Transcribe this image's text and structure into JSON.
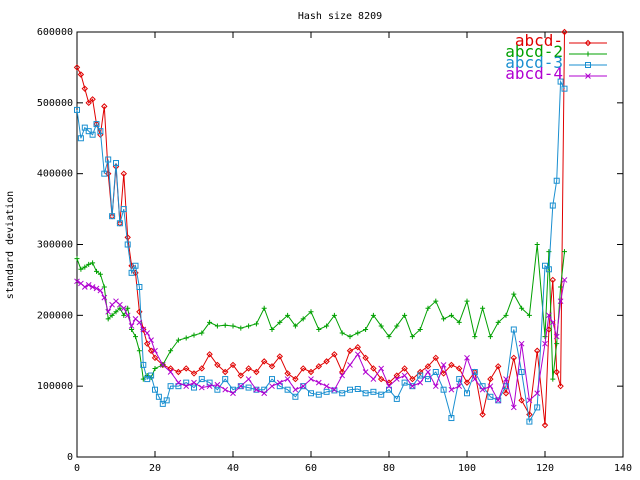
{
  "chart_data": {
    "type": "line",
    "title": "Hash size 8209",
    "xlabel": "",
    "ylabel": "standard deviation",
    "xlim": [
      0,
      140
    ],
    "ylim": [
      0,
      600000
    ],
    "xticks": [
      0,
      20,
      40,
      60,
      80,
      100,
      120,
      140
    ],
    "yticks": [
      0,
      100000,
      200000,
      300000,
      400000,
      500000,
      600000
    ],
    "ytick_labels": [
      "0",
      "100000",
      "200000",
      "300000",
      "400000",
      "500000",
      "600000"
    ],
    "grid": false,
    "legend_position": "top-right",
    "series": [
      {
        "name": "abcd-",
        "color": "#e00000",
        "marker": "diamond",
        "x": [
          0,
          1,
          2,
          3,
          4,
          5,
          6,
          7,
          8,
          9,
          10,
          11,
          12,
          13,
          14,
          15,
          16,
          17,
          18,
          19,
          20,
          22,
          24,
          26,
          28,
          30,
          32,
          34,
          36,
          38,
          40,
          42,
          44,
          46,
          48,
          50,
          52,
          54,
          56,
          58,
          60,
          62,
          64,
          66,
          68,
          70,
          72,
          74,
          76,
          78,
          80,
          82,
          84,
          86,
          88,
          90,
          92,
          94,
          96,
          98,
          100,
          102,
          104,
          106,
          108,
          110,
          112,
          114,
          116,
          118,
          120,
          121,
          122,
          123,
          124,
          125
        ],
        "values": [
          550000,
          540000,
          520000,
          500000,
          505000,
          470000,
          455000,
          495000,
          400000,
          340000,
          410000,
          330000,
          400000,
          310000,
          270000,
          260000,
          205000,
          180000,
          160000,
          150000,
          140000,
          130000,
          125000,
          120000,
          125000,
          118000,
          125000,
          145000,
          130000,
          120000,
          130000,
          115000,
          125000,
          120000,
          135000,
          128000,
          142000,
          118000,
          110000,
          125000,
          120000,
          128000,
          135000,
          145000,
          120000,
          150000,
          155000,
          140000,
          125000,
          110000,
          105000,
          115000,
          125000,
          110000,
          120000,
          128000,
          140000,
          118000,
          130000,
          125000,
          105000,
          120000,
          60000,
          110000,
          128000,
          90000,
          140000,
          80000,
          60000,
          150000,
          45000,
          180000,
          250000,
          120000,
          100000,
          600000
        ]
      },
      {
        "name": "abcd-2",
        "color": "#00a000",
        "marker": "plus",
        "x": [
          0,
          1,
          2,
          3,
          4,
          5,
          6,
          7,
          8,
          9,
          10,
          11,
          12,
          13,
          14,
          15,
          16,
          17,
          18,
          19,
          20,
          22,
          24,
          26,
          28,
          30,
          32,
          34,
          36,
          38,
          40,
          42,
          44,
          46,
          48,
          50,
          52,
          54,
          56,
          58,
          60,
          62,
          64,
          66,
          68,
          70,
          72,
          74,
          76,
          78,
          80,
          82,
          84,
          86,
          88,
          90,
          92,
          94,
          96,
          98,
          100,
          102,
          104,
          106,
          108,
          110,
          112,
          114,
          116,
          118,
          120,
          121,
          122,
          123,
          124,
          125
        ],
        "values": [
          280000,
          265000,
          268000,
          272000,
          274000,
          262000,
          258000,
          240000,
          195000,
          200000,
          205000,
          210000,
          200000,
          210000,
          180000,
          170000,
          150000,
          110000,
          115000,
          112000,
          125000,
          130000,
          150000,
          165000,
          168000,
          172000,
          175000,
          190000,
          185000,
          186000,
          185000,
          182000,
          185000,
          188000,
          210000,
          180000,
          190000,
          200000,
          185000,
          195000,
          205000,
          180000,
          185000,
          200000,
          175000,
          170000,
          175000,
          180000,
          200000,
          185000,
          170000,
          185000,
          200000,
          170000,
          180000,
          210000,
          220000,
          195000,
          200000,
          190000,
          220000,
          170000,
          210000,
          170000,
          190000,
          200000,
          230000,
          210000,
          200000,
          300000,
          170000,
          290000,
          110000,
          160000,
          240000,
          290000
        ]
      },
      {
        "name": "abcd-3",
        "color": "#1a8fd0",
        "marker": "square",
        "x": [
          0,
          1,
          2,
          3,
          4,
          5,
          6,
          7,
          8,
          9,
          10,
          11,
          12,
          13,
          14,
          15,
          16,
          17,
          18,
          19,
          20,
          21,
          22,
          23,
          24,
          26,
          28,
          30,
          32,
          34,
          36,
          38,
          40,
          42,
          44,
          46,
          48,
          50,
          52,
          54,
          56,
          58,
          60,
          62,
          64,
          66,
          68,
          70,
          72,
          74,
          76,
          78,
          80,
          82,
          84,
          86,
          88,
          90,
          92,
          94,
          96,
          98,
          100,
          102,
          104,
          106,
          108,
          110,
          112,
          114,
          116,
          118,
          120,
          121,
          122,
          123,
          124,
          125
        ],
        "values": [
          490000,
          450000,
          465000,
          460000,
          455000,
          470000,
          460000,
          400000,
          420000,
          340000,
          415000,
          330000,
          350000,
          300000,
          260000,
          270000,
          240000,
          130000,
          110000,
          115000,
          95000,
          85000,
          75000,
          80000,
          100000,
          100000,
          105000,
          98000,
          110000,
          105000,
          95000,
          110000,
          95000,
          100000,
          98000,
          95000,
          95000,
          110000,
          100000,
          95000,
          85000,
          100000,
          90000,
          88000,
          92000,
          94000,
          90000,
          95000,
          96000,
          90000,
          92000,
          88000,
          95000,
          82000,
          105000,
          100000,
          115000,
          110000,
          120000,
          95000,
          55000,
          110000,
          90000,
          120000,
          100000,
          85000,
          80000,
          100000,
          180000,
          120000,
          50000,
          70000,
          270000,
          265000,
          355000,
          390000,
          530000,
          520000
        ]
      },
      {
        "name": "abcd-4",
        "color": "#b000d0",
        "marker": "cross",
        "x": [
          0,
          1,
          2,
          3,
          4,
          5,
          6,
          7,
          8,
          9,
          10,
          11,
          12,
          13,
          14,
          15,
          16,
          17,
          18,
          19,
          20,
          22,
          24,
          26,
          28,
          30,
          32,
          34,
          36,
          38,
          40,
          42,
          44,
          46,
          48,
          50,
          52,
          54,
          56,
          58,
          60,
          62,
          64,
          66,
          68,
          70,
          72,
          74,
          76,
          78,
          80,
          82,
          84,
          86,
          88,
          90,
          92,
          94,
          96,
          98,
          100,
          102,
          104,
          106,
          108,
          110,
          112,
          114,
          116,
          118,
          120,
          121,
          122,
          123,
          124,
          125
        ],
        "values": [
          248000,
          245000,
          240000,
          243000,
          240000,
          238000,
          235000,
          225000,
          205000,
          215000,
          220000,
          215000,
          210000,
          200000,
          185000,
          195000,
          190000,
          180000,
          175000,
          165000,
          150000,
          130000,
          120000,
          105000,
          100000,
          105000,
          98000,
          100000,
          102000,
          95000,
          90000,
          100000,
          110000,
          95000,
          90000,
          100000,
          105000,
          110000,
          95000,
          100000,
          110000,
          105000,
          100000,
          95000,
          115000,
          130000,
          145000,
          120000,
          110000,
          125000,
          100000,
          110000,
          115000,
          100000,
          105000,
          120000,
          100000,
          130000,
          95000,
          100000,
          140000,
          110000,
          95000,
          100000,
          80000,
          110000,
          70000,
          160000,
          80000,
          90000,
          160000,
          200000,
          190000,
          170000,
          220000,
          250000
        ]
      }
    ]
  }
}
